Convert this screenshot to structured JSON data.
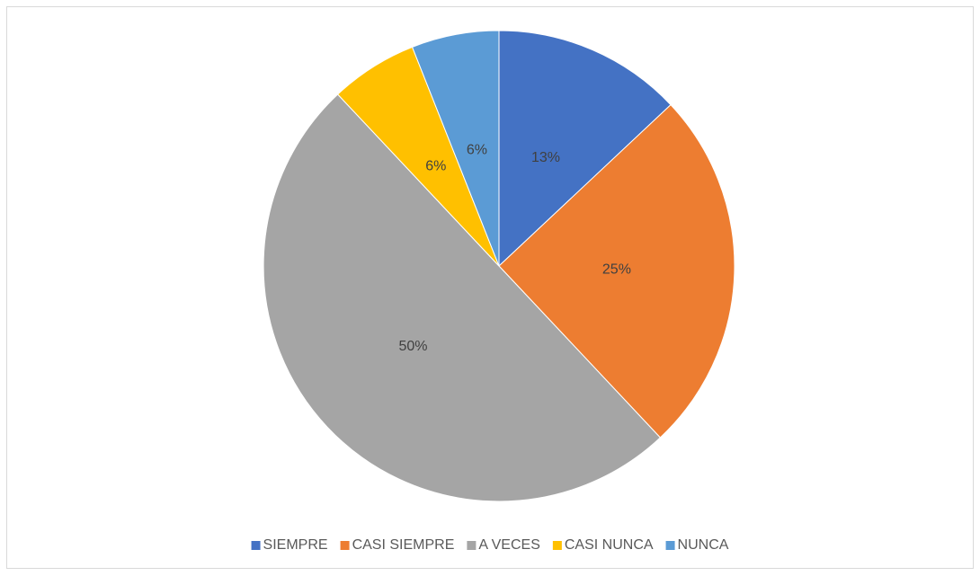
{
  "chart_data": {
    "type": "pie",
    "categories": [
      "SIEMPRE",
      "CASI SIEMPRE",
      "A VECES",
      "CASI NUNCA",
      "NUNCA"
    ],
    "values": [
      13,
      25,
      50,
      6,
      6
    ],
    "value_labels": [
      "13%",
      "25%",
      "50%",
      "6%",
      "6%"
    ],
    "colors": [
      "#4472c4",
      "#ed7d31",
      "#a5a5a5",
      "#ffc000",
      "#5b9bd5"
    ],
    "legend": "bottom"
  }
}
